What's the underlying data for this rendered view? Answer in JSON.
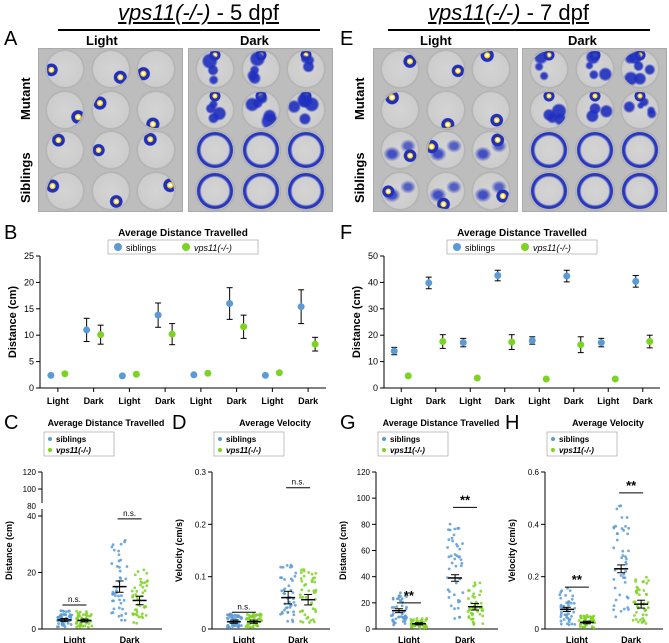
{
  "left_header": {
    "title_italic": "vps11(-/-)",
    "title_rest": " - 5 dpf",
    "light": "Light",
    "dark": "Dark"
  },
  "right_header": {
    "title_italic": "vps11(-/-)",
    "title_rest": " - 7 dpf",
    "light": "Light",
    "dark": "Dark"
  },
  "panel_letters": {
    "A": "A",
    "B": "B",
    "C": "C",
    "D": "D",
    "E": "E",
    "F": "F",
    "G": "G",
    "H": "H"
  },
  "row_labels": {
    "mutant": "Mutant",
    "siblings": "Siblings"
  },
  "colors": {
    "siblings": "#5b9bd5",
    "mutant": "#7dd321",
    "track": "#1f2fbf",
    "error": "#000000"
  },
  "chart_data": [
    {
      "id": "B",
      "type": "scatter",
      "title": "Average Distance Travelled",
      "ylabel": "Distance (cm)",
      "ylim": [
        0,
        25
      ],
      "yticks": [
        0,
        5,
        10,
        15,
        20,
        25
      ],
      "categories": [
        "Light",
        "Dark",
        "Light",
        "Dark",
        "Light",
        "Dark",
        "Light",
        "Dark"
      ],
      "series": [
        {
          "name": "siblings",
          "values": [
            2.4,
            11.0,
            2.3,
            13.8,
            2.5,
            16.0,
            2.4,
            15.4
          ],
          "err": [
            0.3,
            2.2,
            0.3,
            2.3,
            0.3,
            3.0,
            0.3,
            3.2
          ]
        },
        {
          "name": "vps11(-/-)",
          "values": [
            2.7,
            10.1,
            2.6,
            10.2,
            2.8,
            11.6,
            2.9,
            8.3
          ],
          "err": [
            0.3,
            1.8,
            0.3,
            2.0,
            0.3,
            2.2,
            0.3,
            1.3
          ]
        }
      ]
    },
    {
      "id": "F",
      "type": "scatter",
      "title": "Average Distance Travelled",
      "ylabel": "Distance (cm)",
      "ylim": [
        0,
        50
      ],
      "yticks": [
        0,
        10,
        20,
        30,
        40,
        50
      ],
      "categories": [
        "Light",
        "Dark",
        "Light",
        "Dark",
        "Light",
        "Dark",
        "Light",
        "Dark"
      ],
      "series": [
        {
          "name": "siblings",
          "values": [
            14.0,
            39.8,
            17.2,
            42.6,
            18.0,
            42.4,
            17.2,
            40.4
          ],
          "err": [
            1.4,
            2.2,
            1.6,
            2.0,
            1.4,
            2.2,
            1.6,
            2.2
          ]
        },
        {
          "name": "vps11(-/-)",
          "values": [
            4.6,
            17.6,
            3.8,
            17.4,
            3.4,
            16.4,
            3.4,
            17.6
          ],
          "err": [
            0.4,
            2.6,
            0.3,
            2.8,
            0.3,
            3.0,
            0.3,
            2.4
          ]
        }
      ]
    },
    {
      "id": "C",
      "type": "scatter",
      "title": "Average Distance Travelled",
      "ylabel": "Distance (cm)",
      "yticks": [
        0,
        20,
        40,
        80,
        100,
        120
      ],
      "broken_axis": true,
      "categories": [
        "Light",
        "Dark"
      ],
      "series": [
        {
          "name": "siblings",
          "means": [
            3.2,
            15.0
          ],
          "sem": [
            0.5,
            2.0
          ]
        },
        {
          "name": "vps11(-/-)",
          "means": [
            3.0,
            10.1
          ],
          "sem": [
            0.5,
            1.5
          ]
        }
      ],
      "annotations": [
        "n.s.",
        "n.s."
      ]
    },
    {
      "id": "D",
      "type": "scatter",
      "title": "Average Velocity",
      "ylabel": "Velocity (cm/s)",
      "ylim": [
        0,
        0.3
      ],
      "yticks": [
        0.0,
        0.1,
        0.2,
        0.3
      ],
      "categories": [
        "Light",
        "Dark"
      ],
      "series": [
        {
          "name": "siblings",
          "means": [
            0.014,
            0.06
          ],
          "sem": [
            0.003,
            0.012
          ]
        },
        {
          "name": "vps11(-/-)",
          "means": [
            0.014,
            0.056
          ],
          "sem": [
            0.003,
            0.01
          ]
        }
      ],
      "annotations": [
        "n.s.",
        "n.s."
      ]
    },
    {
      "id": "G",
      "type": "scatter",
      "title": "Average Distance Travelled",
      "ylabel": "Distance (cm)",
      "ylim": [
        0,
        120
      ],
      "yticks": [
        0,
        20,
        40,
        60,
        80,
        100,
        120
      ],
      "categories": [
        "Light",
        "Dark"
      ],
      "series": [
        {
          "name": "siblings",
          "means": [
            14.0,
            39.0
          ],
          "sem": [
            1.5,
            2.5
          ]
        },
        {
          "name": "vps11(-/-)",
          "means": [
            4.0,
            17.0
          ],
          "sem": [
            0.8,
            2.5
          ]
        }
      ],
      "annotations": [
        "**",
        "**"
      ]
    },
    {
      "id": "H",
      "type": "scatter",
      "title": "Average Velocity",
      "ylabel": "Velocity (cm/s)",
      "ylim": [
        0,
        0.6
      ],
      "yticks": [
        0.0,
        0.2,
        0.4,
        0.6
      ],
      "categories": [
        "Light",
        "Dark"
      ],
      "series": [
        {
          "name": "siblings",
          "means": [
            0.075,
            0.23
          ],
          "sem": [
            0.008,
            0.015
          ]
        },
        {
          "name": "vps11(-/-)",
          "means": [
            0.025,
            0.095
          ],
          "sem": [
            0.005,
            0.015
          ]
        }
      ],
      "annotations": [
        "**",
        "**"
      ]
    }
  ]
}
